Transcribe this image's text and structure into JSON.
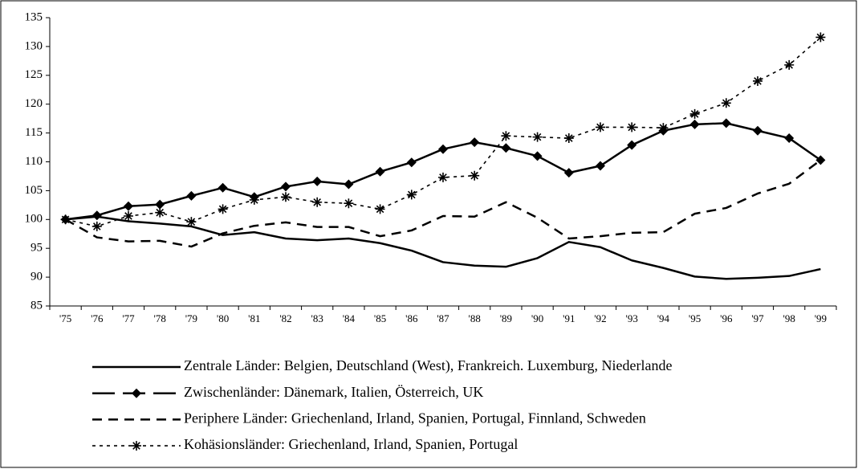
{
  "chart_data": {
    "type": "line",
    "categories": [
      "'75",
      "'76",
      "'77",
      "'78",
      "'79",
      "'80",
      "'81",
      "'82",
      "'83",
      "'84",
      "'85",
      "'86",
      "'87",
      "'88",
      "'89",
      "'90",
      "'91",
      "'92",
      "'93",
      "'94",
      "'95",
      "'96",
      "'97",
      "'98",
      "'99"
    ],
    "ylim": [
      85,
      135
    ],
    "yticks": [
      85,
      90,
      95,
      100,
      105,
      110,
      115,
      120,
      125,
      130,
      135
    ],
    "grid": false,
    "series": [
      {
        "name": "Zentrale Länder: Belgien, Deutschland (West), Frankreich. Luxemburg, Niederlande",
        "color": "#000000",
        "line_style": "solid",
        "values": [
          100,
          100.5,
          99.7,
          99.3,
          98.8,
          97.3,
          97.8,
          96.7,
          96.4,
          96.7,
          95.9,
          94.6,
          92.6,
          92.0,
          91.8,
          93.3,
          96.1,
          95.2,
          92.9,
          91.6,
          90.1,
          89.7,
          89.9,
          90.2,
          91.4
        ]
      },
      {
        "name": "Zwischenländer: Dänemark, Italien, Österreich, UK",
        "color": "#000000",
        "line_style": "solid",
        "marker": "diamond",
        "values": [
          100,
          100.7,
          102.3,
          102.6,
          104.1,
          105.5,
          103.9,
          105.7,
          106.6,
          106.1,
          108.3,
          109.9,
          112.2,
          113.4,
          112.4,
          111.0,
          108.1,
          109.3,
          112.9,
          115.4,
          116.5,
          116.7,
          115.4,
          114.1,
          110.3
        ]
      },
      {
        "name": "Periphere Länder: Griechenland, Irland, Spanien, Portugal, Finnland, Schweden",
        "color": "#000000",
        "line_style": "dashed",
        "values": [
          100,
          96.9,
          96.2,
          96.3,
          95.3,
          97.6,
          98.9,
          99.5,
          98.7,
          98.7,
          97.1,
          98.1,
          100.6,
          100.5,
          103.0,
          100.3,
          96.7,
          97.1,
          97.7,
          97.8,
          101.0,
          102.0,
          104.5,
          106.2,
          110.3
        ]
      },
      {
        "name": "Kohäsionsländer: Griechenland, Irland, Spanien, Portugal",
        "color": "#000000",
        "line_style": "dotted",
        "marker": "asterisk",
        "values": [
          100,
          98.8,
          100.6,
          101.2,
          99.6,
          101.8,
          103.4,
          103.9,
          103.0,
          102.8,
          101.8,
          104.3,
          107.3,
          107.6,
          114.5,
          114.3,
          114.1,
          116.0,
          116.0,
          115.9,
          118.3,
          120.2,
          124.0,
          126.8,
          131.6
        ]
      }
    ]
  }
}
